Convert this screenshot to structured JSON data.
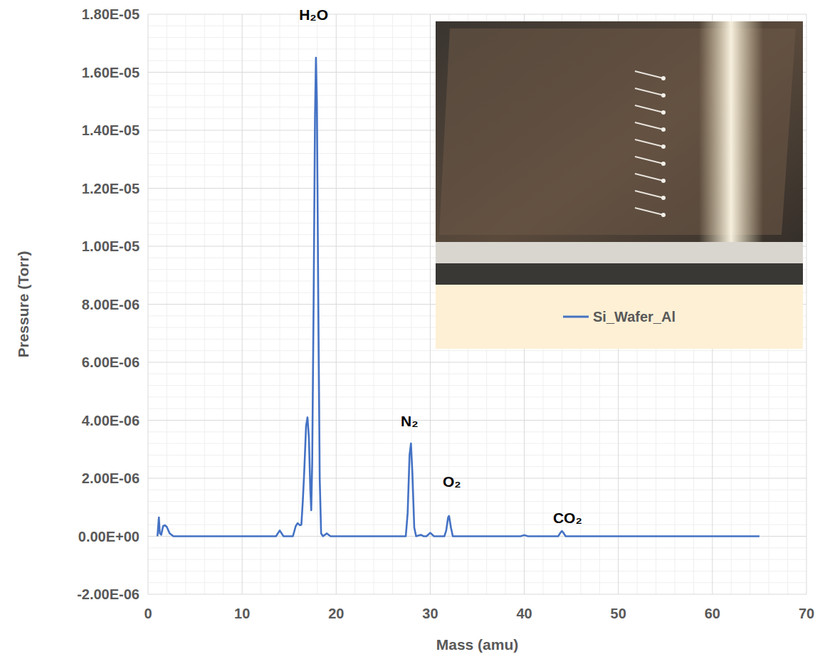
{
  "chart_data": {
    "type": "line",
    "x_label": "Mass (amu)",
    "y_label": "Pressure (Torr)",
    "x": [
      1.0,
      1.15,
      1.25,
      1.4,
      1.6,
      1.8,
      2.0,
      2.3,
      2.7,
      12.0,
      13.6,
      14.0,
      14.4,
      15.4,
      15.7,
      15.9,
      16.15,
      16.3,
      16.45,
      16.6,
      16.8,
      16.95,
      17.1,
      17.25,
      17.35,
      17.45,
      17.6,
      17.75,
      17.85,
      17.95,
      18.1,
      18.25,
      18.4,
      18.6,
      19.0,
      19.4,
      20.0,
      27.4,
      27.6,
      27.8,
      27.95,
      28.1,
      28.3,
      28.5,
      29.0,
      29.3,
      29.6,
      30.0,
      30.4,
      31.5,
      31.7,
      31.9,
      32.0,
      32.2,
      32.4,
      39.6,
      40.0,
      40.4,
      43.6,
      43.9,
      44.0,
      44.2,
      44.4,
      65.0
    ],
    "series": [
      {
        "name": "Si_Wafer_Al",
        "color": "#4472c4",
        "values": [
          0,
          6.5e-07,
          1e-07,
          5e-08,
          3.5e-07,
          3.8e-07,
          3.2e-07,
          1e-07,
          0,
          0,
          0,
          2e-07,
          0,
          0,
          3.5e-07,
          4.5e-07,
          3.8e-07,
          4e-07,
          1.2e-06,
          2.2e-06,
          3.8e-06,
          4.1e-06,
          3.4e-06,
          1.6e-06,
          9e-07,
          2.5e-06,
          8e-06,
          1.45e-05,
          1.65e-05,
          1.5e-05,
          8e-06,
          2e-06,
          1e-07,
          0,
          1e-07,
          0,
          0,
          0,
          8e-07,
          2.8e-06,
          3.2e-06,
          2.2e-06,
          3e-07,
          0,
          5e-08,
          0,
          0,
          1.2e-07,
          0,
          0,
          2e-07,
          6.5e-07,
          7e-07,
          3e-07,
          0,
          0,
          4e-08,
          0,
          0,
          1.5e-07,
          1.8e-07,
          1e-07,
          0,
          0
        ]
      }
    ],
    "xlim": [
      0,
      70
    ],
    "xticks": [
      0,
      10,
      20,
      30,
      40,
      50,
      60,
      70
    ],
    "ylim": [
      -2e-06,
      1.8e-05
    ],
    "yticks": [
      {
        "value": -2e-06,
        "label": "-2.00E-06"
      },
      {
        "value": 0,
        "label": "0.00E+00"
      },
      {
        "value": 2e-06,
        "label": "2.00E-06"
      },
      {
        "value": 4e-06,
        "label": "4.00E-06"
      },
      {
        "value": 6e-06,
        "label": "6.00E-06"
      },
      {
        "value": 8e-06,
        "label": "8.00E-06"
      },
      {
        "value": 1e-05,
        "label": "1.00E-05"
      },
      {
        "value": 1.2e-05,
        "label": "1.20E-05"
      },
      {
        "value": 1.4e-05,
        "label": "1.40E-05"
      },
      {
        "value": 1.6e-05,
        "label": "1.60E-05"
      },
      {
        "value": 1.8e-05,
        "label": "1.80E-05"
      }
    ],
    "annotations": [
      {
        "text": "H₂O",
        "x": 17.6,
        "y": 1.78e-05
      },
      {
        "text": "N₂",
        "x": 27.8,
        "y": 3.8e-06
      },
      {
        "text": "O₂",
        "x": 32.3,
        "y": 1.7e-06
      },
      {
        "text": "CO₂",
        "x": 44.6,
        "y": 4.5e-07
      }
    ],
    "grid": true,
    "legend": "upper right",
    "line_style": "solid",
    "marker": "none"
  }
}
